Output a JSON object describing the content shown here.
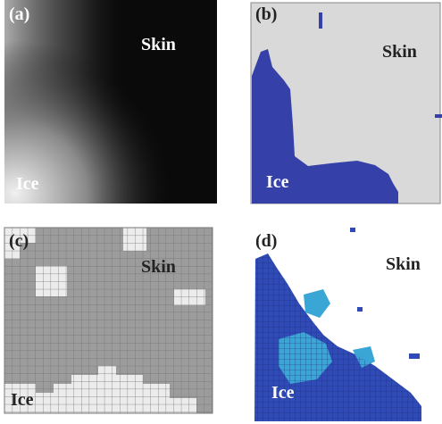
{
  "panels": [
    {
      "label": "(a)",
      "regions": [
        "Skin",
        "Ice"
      ]
    },
    {
      "label": "(b)",
      "regions": [
        "Skin",
        "Ice"
      ]
    },
    {
      "label": "(c)",
      "regions": [
        "Skin",
        "Ice"
      ]
    },
    {
      "label": "(d)",
      "regions": [
        "Skin",
        "Ice"
      ]
    }
  ]
}
